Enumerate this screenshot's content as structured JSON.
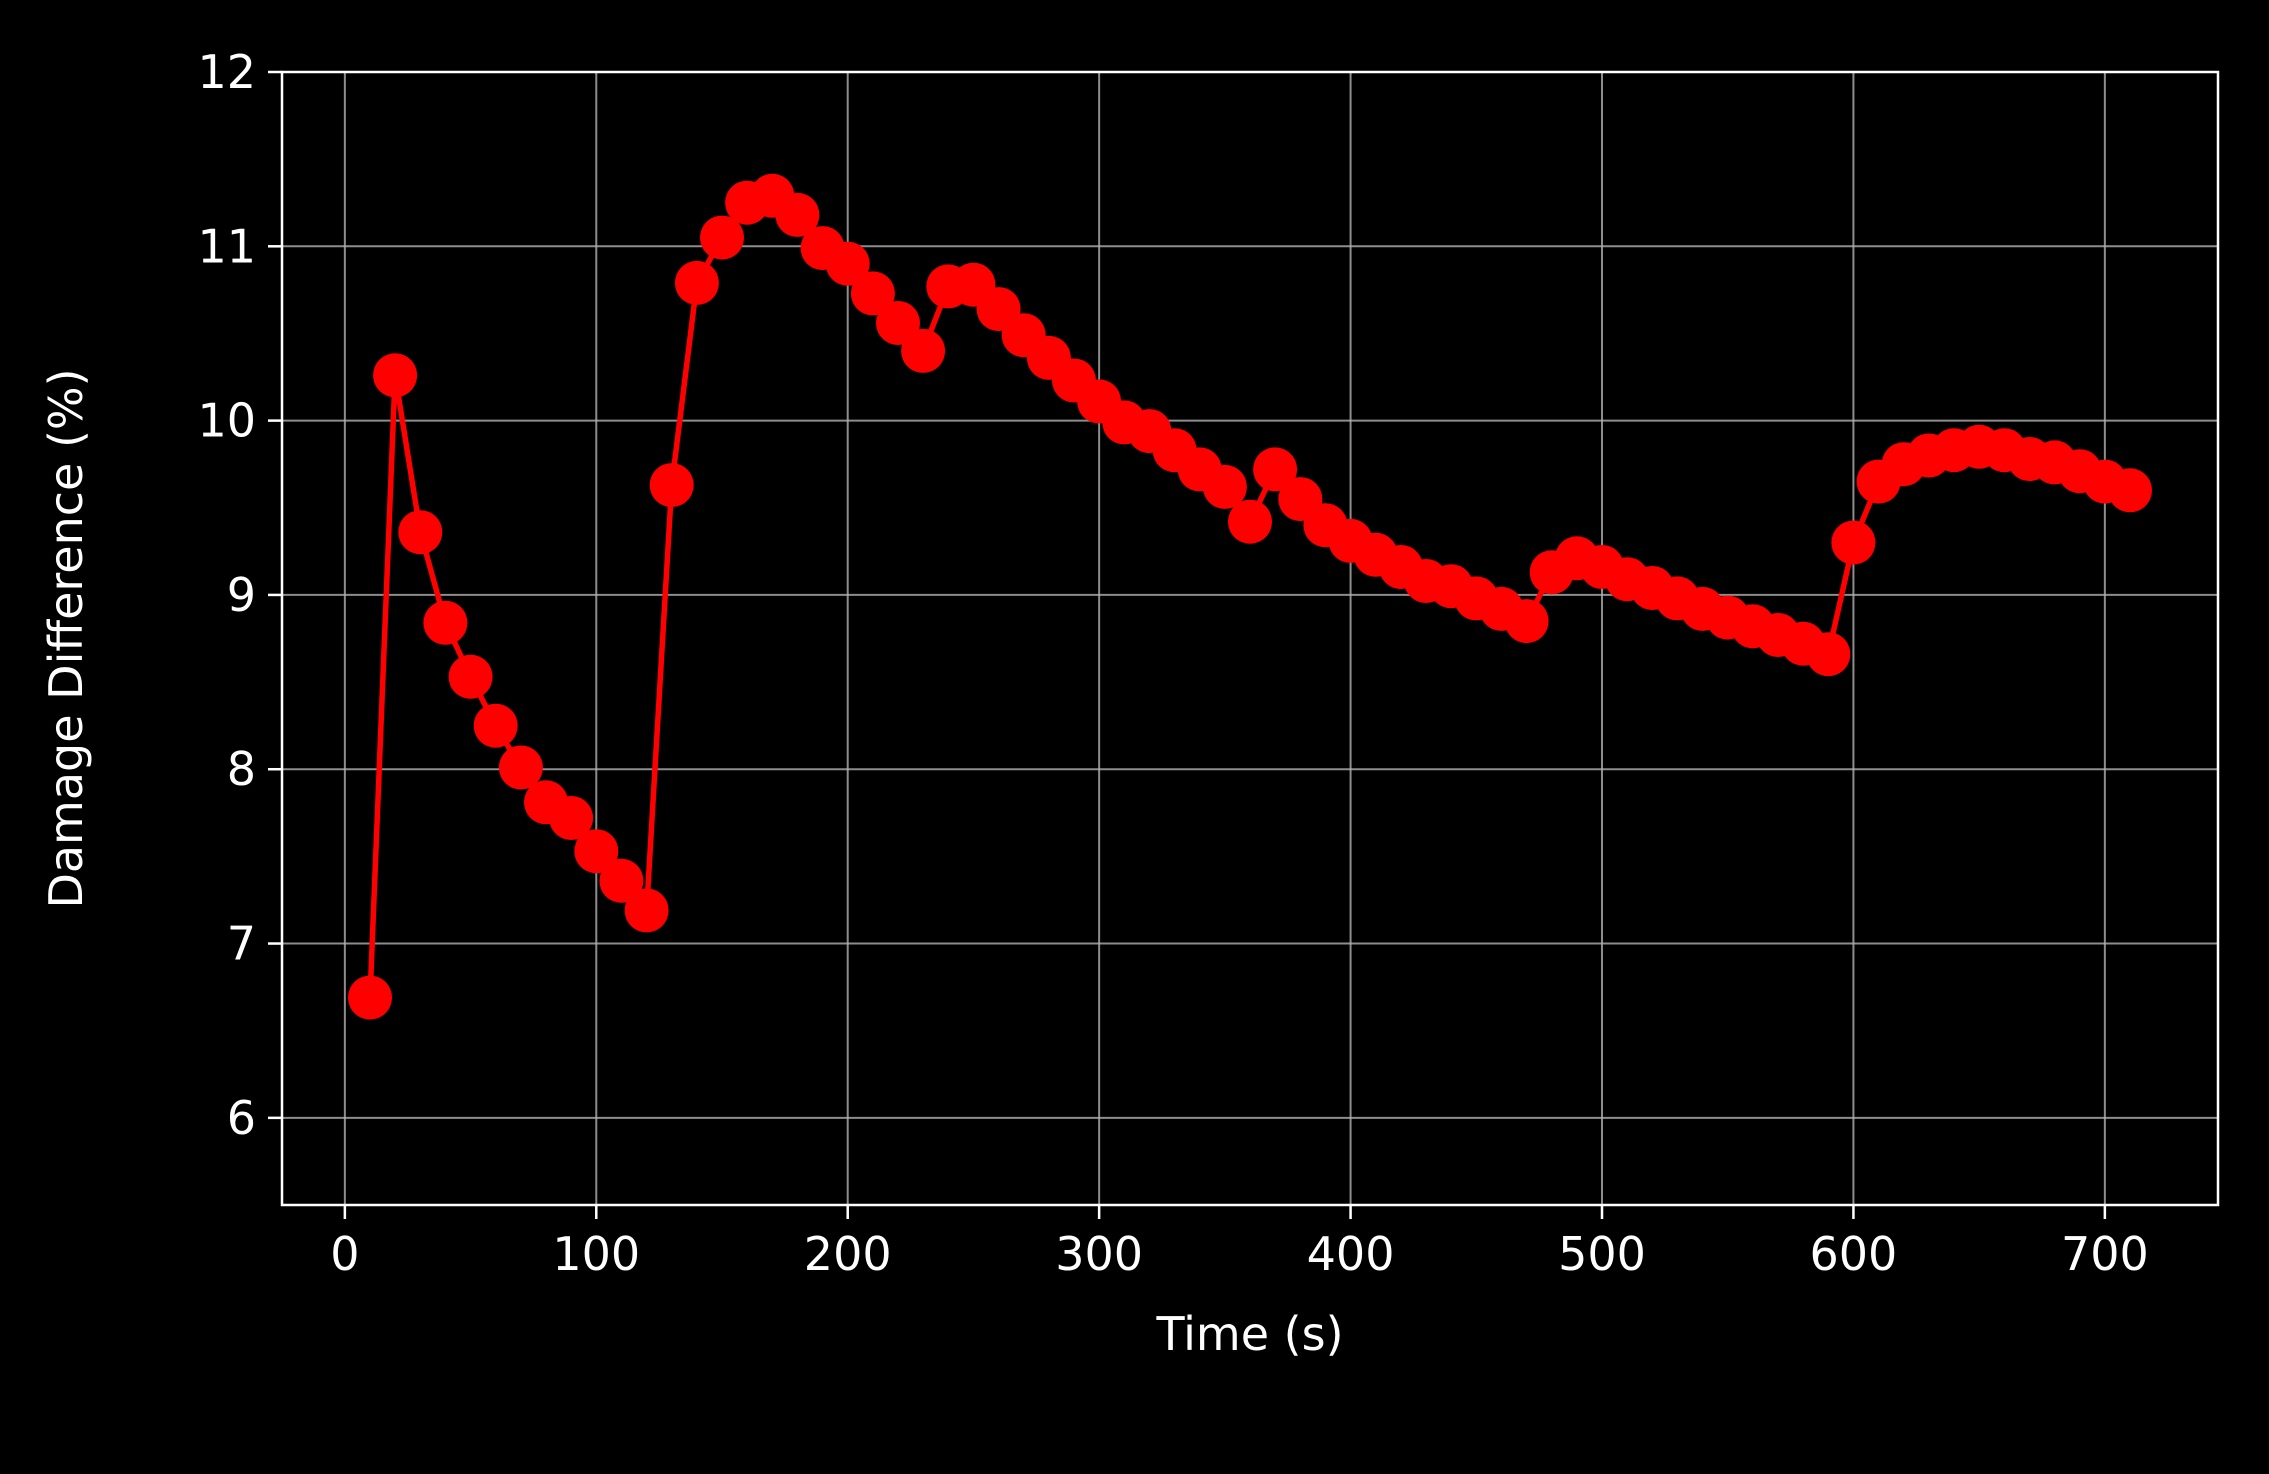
{
  "chart_data": {
    "type": "line",
    "title": "",
    "xlabel": "Time (s)",
    "ylabel": "Damage Difference (%)",
    "xlim": [
      -25,
      745
    ],
    "ylim": [
      5.5,
      12
    ],
    "xticks": [
      0,
      100,
      200,
      300,
      400,
      500,
      600,
      700
    ],
    "yticks": [
      6,
      7,
      8,
      9,
      10,
      11,
      12
    ],
    "grid": true,
    "legend": "none",
    "colors": {
      "background": "#000000",
      "axes": "#ffffff",
      "grid": "#b0b0b0",
      "series": "#ff0000",
      "text": "#ffffff"
    },
    "series": [
      {
        "marker": "circle",
        "x": [
          10,
          20,
          30,
          40,
          50,
          60,
          70,
          80,
          90,
          100,
          110,
          120,
          130,
          140,
          150,
          160,
          170,
          180,
          190,
          200,
          210,
          220,
          230,
          240,
          250,
          260,
          270,
          280,
          290,
          300,
          310,
          320,
          330,
          340,
          350,
          360,
          370,
          380,
          390,
          400,
          410,
          420,
          430,
          440,
          450,
          460,
          470,
          480,
          490,
          500,
          510,
          520,
          530,
          540,
          550,
          560,
          570,
          580,
          590,
          600,
          610,
          620,
          630,
          640,
          650,
          660,
          670,
          680,
          690,
          700,
          710
        ],
        "y": [
          6.69,
          10.26,
          9.36,
          8.84,
          8.53,
          8.25,
          8.01,
          7.81,
          7.72,
          7.53,
          7.36,
          7.19,
          9.63,
          10.79,
          11.05,
          11.25,
          11.29,
          11.18,
          10.99,
          10.9,
          10.73,
          10.56,
          10.4,
          10.77,
          10.78,
          10.64,
          10.49,
          10.36,
          10.23,
          10.11,
          9.99,
          9.94,
          9.83,
          9.72,
          9.62,
          9.42,
          9.72,
          9.55,
          9.4,
          9.31,
          9.23,
          9.16,
          9.08,
          9.05,
          8.98,
          8.92,
          8.85,
          9.13,
          9.21,
          9.16,
          9.09,
          9.04,
          8.98,
          8.92,
          8.87,
          8.82,
          8.77,
          8.72,
          8.66,
          9.3,
          9.65,
          9.75,
          9.8,
          9.83,
          9.85,
          9.83,
          9.78,
          9.76,
          9.71,
          9.65,
          9.6
        ]
      }
    ]
  }
}
